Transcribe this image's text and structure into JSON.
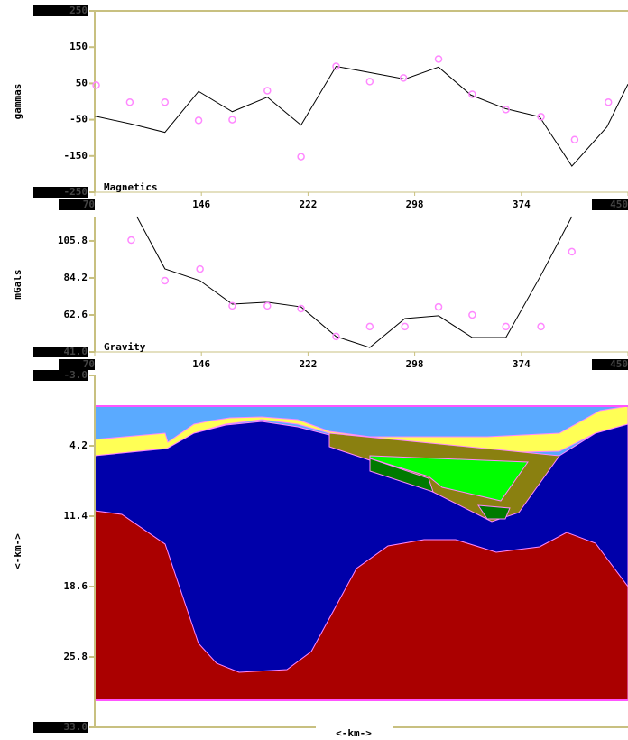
{
  "chart_data": [
    {
      "type": "line",
      "annotation": "Magnetics",
      "ylabel": "gammas",
      "xlim": [
        70,
        450
      ],
      "xticks": [
        70,
        146,
        222,
        298,
        374,
        450
      ],
      "ylim": [
        -250,
        250
      ],
      "yticks": [
        -250,
        -150,
        -50,
        50,
        150,
        250
      ],
      "series": [
        {
          "color": "#000000",
          "marker": "none",
          "x": [
            70,
            96,
            120,
            144,
            168,
            193,
            217,
            242,
            266,
            291,
            315,
            338,
            363,
            387,
            410,
            435,
            450
          ],
          "values": [
            -40,
            -62,
            -85,
            28,
            -28,
            12,
            -65,
            97,
            80,
            62,
            95,
            18,
            -20,
            -42,
            -178,
            -70,
            48
          ]
        },
        {
          "color": "#ff88ff",
          "marker": "circle",
          "x": [
            71,
            95,
            120,
            144,
            168,
            193,
            217,
            242,
            266,
            290,
            315,
            339,
            363,
            388,
            412,
            436
          ],
          "values": [
            45,
            -2,
            -2,
            -52,
            -50,
            30,
            -152,
            97,
            55,
            65,
            117,
            20,
            -22,
            -42,
            -105,
            -2
          ]
        }
      ]
    },
    {
      "type": "line",
      "annotation": "Gravity",
      "ylabel": "mGals",
      "xlim": [
        70,
        450
      ],
      "xticks": [
        70,
        146,
        222,
        298,
        374,
        450
      ],
      "ylim": [
        41,
        120
      ],
      "yticks": [
        {
          "value": 41,
          "label": "41.0"
        },
        62.6,
        84.2,
        105.8
      ],
      "series": [
        {
          "color": "#000000",
          "marker": "none",
          "x": [
            100,
            120,
            145,
            168,
            193,
            217,
            242,
            266,
            291,
            315,
            339,
            363,
            388,
            410
          ],
          "values": [
            120,
            89.5,
            82.6,
            68.9,
            70,
            67.3,
            50,
            43.6,
            60.5,
            62.1,
            49.4,
            49.4,
            85.8,
            120
          ]
        },
        {
          "color": "#ff88ff",
          "marker": "circle",
          "x": [
            96,
            120,
            145,
            168,
            193,
            217,
            242,
            266,
            291,
            315,
            339,
            363,
            388,
            410
          ],
          "values": [
            106.3,
            82.6,
            89.4,
            67.9,
            67.9,
            66.3,
            50,
            55.8,
            55.8,
            67.3,
            62.6,
            55.8,
            55.8,
            99.5
          ]
        }
      ]
    },
    {
      "type": "section",
      "ylabel": "<-km->",
      "xlabel": "<-km->",
      "inverted": true,
      "ylim": [
        -3,
        33
      ],
      "yticks": [
        {
          "value": -3,
          "label": "-3.0"
        },
        4.2,
        11.4,
        18.6,
        25.8,
        {
          "value": 33,
          "label": "33.0"
        }
      ]
    }
  ]
}
